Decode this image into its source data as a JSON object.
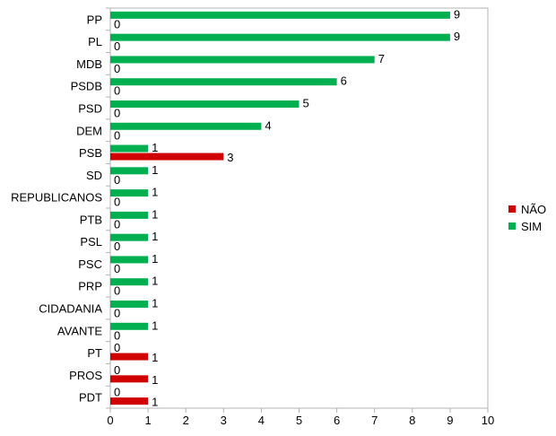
{
  "chart_data": {
    "type": "bar",
    "orientation": "horizontal",
    "categories": [
      "PP",
      "PL",
      "MDB",
      "PSDB",
      "PSD",
      "DEM",
      "PSB",
      "SD",
      "REPUBLICANOS",
      "PTB",
      "PSL",
      "PSC",
      "PRP",
      "CIDADANIA",
      "AVANTE",
      "PT",
      "PROS",
      "PDT"
    ],
    "series": [
      {
        "name": "SIM",
        "color": "#00b050",
        "values": [
          9,
          9,
          7,
          6,
          5,
          4,
          1,
          1,
          1,
          1,
          1,
          1,
          1,
          1,
          1,
          0,
          0,
          0
        ]
      },
      {
        "name": "NÃO",
        "color": "#d00000",
        "values": [
          0,
          0,
          0,
          0,
          0,
          0,
          3,
          0,
          0,
          0,
          0,
          0,
          0,
          0,
          0,
          1,
          1,
          1
        ]
      }
    ],
    "xlim": [
      0,
      10
    ],
    "xticks": [
      "0",
      "1",
      "2",
      "3",
      "4",
      "5",
      "6",
      "7",
      "8",
      "9",
      "10"
    ],
    "legend": [
      {
        "name": "NÃO",
        "color": "#d00000"
      },
      {
        "name": "SIM",
        "color": "#00b050"
      }
    ],
    "legend_position": "right",
    "grid": false,
    "title": "",
    "xlabel": "",
    "ylabel": ""
  }
}
